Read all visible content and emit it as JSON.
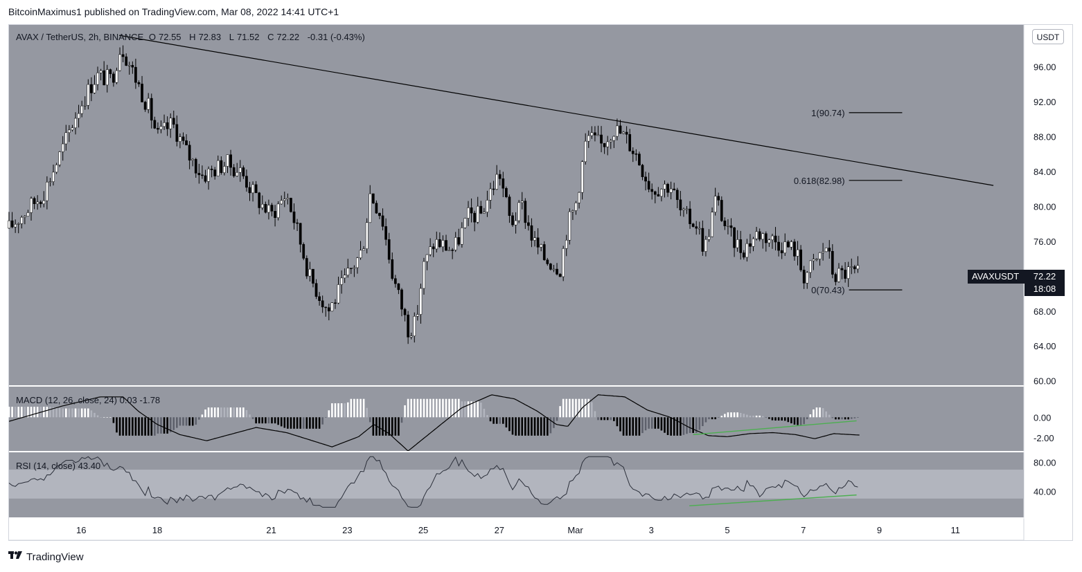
{
  "caption": "BitcoinMaximus1 published on TradingView.com, Mar 08, 2022 14:41 UTC+1",
  "footer": {
    "brand": "TradingView",
    "logo_icon": "tradingview-logo-icon"
  },
  "colors": {
    "panel_bg": "#9598a1",
    "rsi_band": "#b2b5be",
    "up_candle": "#ffffff",
    "down_candle": "#000000",
    "macd_pos_strong": "#ffffff",
    "macd_pos_weak": "#b2b5be",
    "macd_neg_strong": "#000000",
    "macd_neg_weak": "#5d606b",
    "divergence": "#4caf50",
    "line": "#000000"
  },
  "legend": {
    "symbol": "AVAX / TetherUS, 2h, BINANCE",
    "o_label": "O",
    "o_value": "72.55",
    "h_label": "H",
    "h_value": "72.83",
    "l_label": "L",
    "l_value": "71.52",
    "c_label": "C",
    "c_value": "72.22",
    "change": "-0.31 (-0.43%)"
  },
  "currency_badge": "USDT",
  "price_tag": {
    "symbol": "AVAXUSDT",
    "price": "72.22",
    "countdown": "18:08"
  },
  "macd_legend": {
    "name": "MACD",
    "params": "(12, 26, close, 24)",
    "v1": "0.03",
    "v2": "-1.78"
  },
  "rsi_legend": {
    "name": "RSI",
    "params": "(14, close)",
    "value": "43.40"
  },
  "chart_data": {
    "type": "candlestick",
    "symbol": "AVAXUSDT",
    "timeframe": "2h",
    "exchange": "BINANCE",
    "x_labels": [
      {
        "day": 16,
        "label": "16"
      },
      {
        "day": 18,
        "label": "18"
      },
      {
        "day": 21,
        "label": "21"
      },
      {
        "day": 23,
        "label": "23"
      },
      {
        "day": 25,
        "label": "25"
      },
      {
        "day": 27,
        "label": "27"
      },
      {
        "day": 29,
        "label": "Mar"
      },
      {
        "day": 31,
        "label": "3"
      },
      {
        "day": 33,
        "label": "5"
      },
      {
        "day": 35,
        "label": "7"
      },
      {
        "day": 37,
        "label": "9"
      },
      {
        "day": 39,
        "label": "11"
      }
    ],
    "y_ticks": [
      60,
      64,
      68,
      72,
      76,
      80,
      84,
      88,
      92,
      96
    ],
    "y_tick_labels": [
      "60.00",
      "64.00",
      "68.00",
      "72.00",
      "76.00",
      "80.00",
      "84.00",
      "88.00",
      "92.00",
      "96.00"
    ],
    "ylim": [
      59.5,
      100.8
    ],
    "xlim": [
      14.1,
      40.8
    ],
    "trendline": [
      {
        "day": 17.0,
        "price": 99.6
      },
      {
        "day": 40.0,
        "price": 82.4
      }
    ],
    "fib_levels": [
      {
        "label": "1(90.74)",
        "price": 90.74
      },
      {
        "label": "0.618(82.98)",
        "price": 82.98
      },
      {
        "label": "0(70.43)",
        "price": 70.43
      }
    ],
    "fib_range_days": [
      36.2,
      37.6
    ],
    "waypoints": [
      [
        14.1,
        77.5
      ],
      [
        15.0,
        81.5
      ],
      [
        15.5,
        86.5
      ],
      [
        15.9,
        91
      ],
      [
        16.4,
        95
      ],
      [
        16.8,
        94.5
      ],
      [
        17.05,
        98.5
      ],
      [
        17.4,
        95
      ],
      [
        17.8,
        91
      ],
      [
        18.0,
        88
      ],
      [
        18.4,
        89.5
      ],
      [
        18.8,
        86
      ],
      [
        19.2,
        83.5
      ],
      [
        19.8,
        85
      ],
      [
        20.2,
        84
      ],
      [
        20.6,
        81
      ],
      [
        21.0,
        79
      ],
      [
        21.4,
        81.5
      ],
      [
        21.7,
        77
      ],
      [
        22.0,
        72
      ],
      [
        22.5,
        68
      ],
      [
        23.0,
        72
      ],
      [
        23.4,
        75
      ],
      [
        23.6,
        81.5
      ],
      [
        23.9,
        79
      ],
      [
        24.2,
        72
      ],
      [
        24.6,
        66
      ],
      [
        24.8,
        66.5
      ],
      [
        25.0,
        73
      ],
      [
        25.3,
        76
      ],
      [
        25.8,
        75
      ],
      [
        26.2,
        79
      ],
      [
        26.5,
        79
      ],
      [
        26.8,
        82
      ],
      [
        27.0,
        84
      ],
      [
        27.3,
        78
      ],
      [
        27.6,
        80
      ],
      [
        27.9,
        76
      ],
      [
        28.2,
        74
      ],
      [
        28.6,
        73
      ],
      [
        28.8,
        78
      ],
      [
        29.0,
        80
      ],
      [
        29.3,
        88
      ],
      [
        29.7,
        87
      ],
      [
        30.0,
        89
      ],
      [
        30.3,
        88
      ],
      [
        30.6,
        86
      ],
      [
        31.0,
        82
      ],
      [
        31.5,
        82.5
      ],
      [
        31.8,
        79
      ],
      [
        32.2,
        78
      ],
      [
        32.4,
        75
      ],
      [
        32.7,
        81
      ],
      [
        33.0,
        77
      ],
      [
        33.4,
        75
      ],
      [
        33.8,
        77
      ],
      [
        34.3,
        76
      ],
      [
        34.8,
        75
      ],
      [
        35.0,
        72
      ],
      [
        35.3,
        73.5
      ],
      [
        35.6,
        75.5
      ],
      [
        35.8,
        72
      ],
      [
        36.2,
        72.5
      ],
      [
        36.5,
        72.2
      ]
    ],
    "macd": {
      "ylim": [
        -3.3,
        3.0
      ],
      "y_ticks": [
        0,
        -2
      ],
      "y_tick_labels": [
        "0.00",
        "-2.00"
      ],
      "waypoints": [
        [
          14.1,
          -0.4
        ],
        [
          15.5,
          1.1
        ],
        [
          16.5,
          2.0
        ],
        [
          17.1,
          2.0
        ],
        [
          17.5,
          0.6
        ],
        [
          18.0,
          -0.7
        ],
        [
          18.6,
          -1.7
        ],
        [
          19.3,
          -2.3
        ],
        [
          20.0,
          -1.6
        ],
        [
          20.6,
          -1.0
        ],
        [
          21.4,
          -1.5
        ],
        [
          22.0,
          -2.2
        ],
        [
          22.6,
          -2.9
        ],
        [
          23.3,
          -1.9
        ],
        [
          23.7,
          -0.7
        ],
        [
          24.1,
          -1.6
        ],
        [
          24.6,
          -3.3
        ],
        [
          25.3,
          -1.2
        ],
        [
          26.0,
          0.9
        ],
        [
          26.8,
          2.2
        ],
        [
          27.4,
          1.8
        ],
        [
          28.0,
          0.6
        ],
        [
          28.5,
          -0.7
        ],
        [
          28.8,
          -0.9
        ],
        [
          29.2,
          1.0
        ],
        [
          29.6,
          2.2
        ],
        [
          30.3,
          2.0
        ],
        [
          30.9,
          0.7
        ],
        [
          31.5,
          0.0
        ],
        [
          32.0,
          -1.0
        ],
        [
          32.5,
          -1.8
        ],
        [
          33.0,
          -1.9
        ],
        [
          33.6,
          -1.6
        ],
        [
          34.2,
          -1.5
        ],
        [
          34.8,
          -1.7
        ],
        [
          35.3,
          -2.1
        ],
        [
          35.8,
          -1.6
        ],
        [
          36.5,
          -1.75
        ]
      ],
      "divergence_line": [
        {
          "day": 32.1,
          "value": -1.7
        },
        {
          "day": 36.4,
          "value": -0.35
        }
      ]
    },
    "rsi": {
      "ylim": [
        4,
        94
      ],
      "band": [
        30,
        70
      ],
      "y_ticks": [
        80,
        40
      ],
      "y_tick_labels": [
        "80.00",
        "40.00"
      ],
      "divergence_line": [
        {
          "day": 32.0,
          "value": 20
        },
        {
          "day": 36.4,
          "value": 35
        }
      ]
    }
  }
}
